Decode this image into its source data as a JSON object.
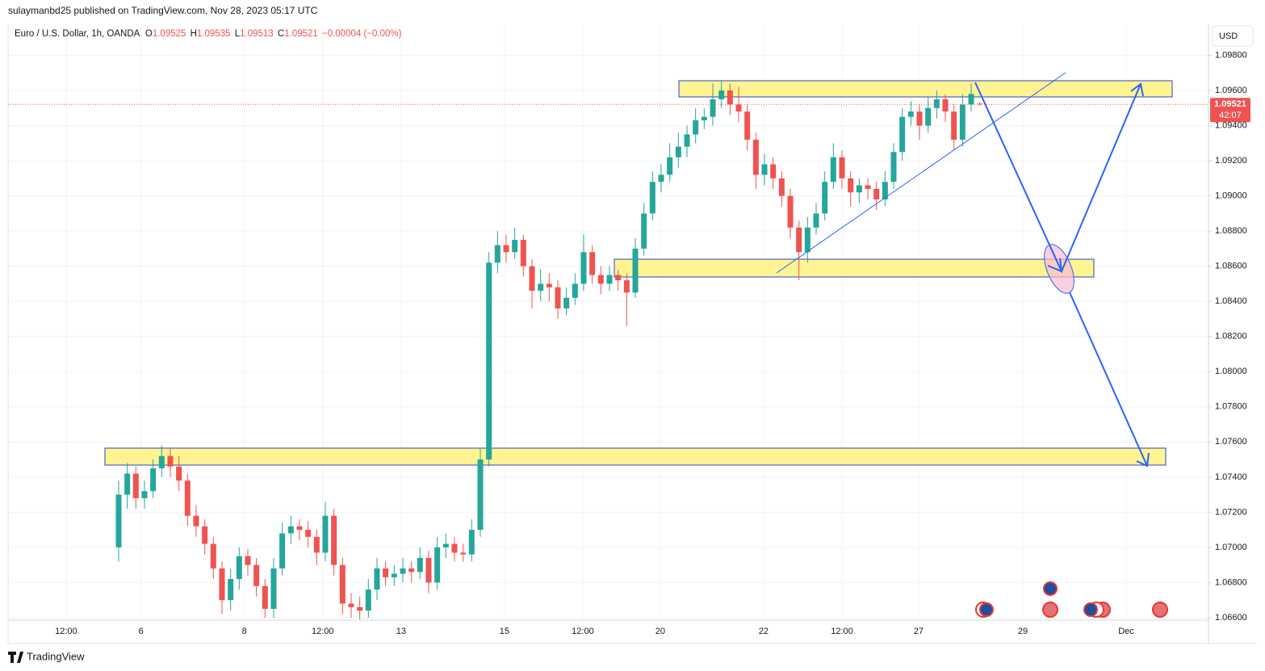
{
  "published": "sulaymanbd25 published on TradingView.com, Nov 28, 2023 05:17 UTC",
  "legend": {
    "symbol": "Euro / U.S. Dollar, 1h, OANDA",
    "fields": [
      {
        "key": "O",
        "value": 1.09525
      },
      {
        "key": "H",
        "value": 1.09535
      },
      {
        "key": "L",
        "value": 1.09513
      },
      {
        "key": "C",
        "value": 1.09521
      }
    ],
    "change": "−0.00004 (−0.00%)"
  },
  "currency": "USD",
  "brand": "TradingView",
  "chart_data": {
    "type": "candlestick",
    "up_color": "#26a69a",
    "down_color": "#ef5350",
    "grid": true,
    "last_price": 1.09521,
    "countdown": "42:07",
    "xlim": [
      -12.84,
      126.56
    ],
    "xticks": [
      {
        "value": -6.1,
        "label": "12:00"
      },
      {
        "value": 2.6,
        "label": "6"
      },
      {
        "value": 14.6,
        "label": "8"
      },
      {
        "value": 23.7,
        "label": "12:00"
      },
      {
        "value": 32.8,
        "label": "13"
      },
      {
        "value": 44.8,
        "label": "15"
      },
      {
        "value": 53.9,
        "label": "12:00"
      },
      {
        "value": 62.9,
        "label": "20"
      },
      {
        "value": 74.9,
        "label": "22"
      },
      {
        "value": 84.0,
        "label": "12:00"
      },
      {
        "value": 92.9,
        "label": "27"
      },
      {
        "value": 105.0,
        "label": "29"
      },
      {
        "value": 117.0,
        "label": "Dec"
      }
    ],
    "ylim": [
      1.06586,
      1.09977
    ],
    "yticks": [
      {
        "value": 1.066,
        "label": "1.06600"
      },
      {
        "value": 1.068,
        "label": "1.06800"
      },
      {
        "value": 1.07,
        "label": "1.07000"
      },
      {
        "value": 1.072,
        "label": "1.07200"
      },
      {
        "value": 1.074,
        "label": "1.07400"
      },
      {
        "value": 1.076,
        "label": "1.07600"
      },
      {
        "value": 1.078,
        "label": "1.07800"
      },
      {
        "value": 1.08,
        "label": "1.08000"
      },
      {
        "value": 1.082,
        "label": "1.08200"
      },
      {
        "value": 1.084,
        "label": "1.08400"
      },
      {
        "value": 1.086,
        "label": "1.08600"
      },
      {
        "value": 1.088,
        "label": "1.08800"
      },
      {
        "value": 1.09,
        "label": "1.09000"
      },
      {
        "value": 1.092,
        "label": "1.09200"
      },
      {
        "value": 1.094,
        "label": "1.09400"
      },
      {
        "value": 1.096,
        "label": "1.09600"
      },
      {
        "value": 1.098,
        "label": "1.09800"
      }
    ],
    "ohlc": [
      [
        1.07,
        1.0738,
        1.0692,
        1.073
      ],
      [
        1.073,
        1.0748,
        1.0722,
        1.0742
      ],
      [
        1.0742,
        1.0746,
        1.0722,
        1.0728
      ],
      [
        1.0728,
        1.0738,
        1.0722,
        1.0732
      ],
      [
        1.0732,
        1.075,
        1.0728,
        1.0745
      ],
      [
        1.0745,
        1.0758,
        1.074,
        1.0752
      ],
      [
        1.0752,
        1.0757,
        1.074,
        1.0746
      ],
      [
        1.0746,
        1.0752,
        1.0732,
        1.0738
      ],
      [
        1.0738,
        1.0742,
        1.0712,
        1.0718
      ],
      [
        1.0718,
        1.0724,
        1.0706,
        1.0712
      ],
      [
        1.0712,
        1.0716,
        1.0696,
        1.0702
      ],
      [
        1.0702,
        1.0706,
        1.0682,
        1.0688
      ],
      [
        1.0688,
        1.0692,
        1.0662,
        1.067
      ],
      [
        1.067,
        1.0688,
        1.0664,
        1.0682
      ],
      [
        1.0682,
        1.07,
        1.0676,
        1.0695
      ],
      [
        1.0695,
        1.0699,
        1.0684,
        1.069
      ],
      [
        1.069,
        1.0694,
        1.0672,
        1.0678
      ],
      [
        1.0678,
        1.0682,
        1.066,
        1.0665
      ],
      [
        1.0665,
        1.0694,
        1.066,
        1.0688
      ],
      [
        1.0688,
        1.0714,
        1.0684,
        1.0708
      ],
      [
        1.0708,
        1.0718,
        1.0702,
        1.0712
      ],
      [
        1.0712,
        1.0716,
        1.0704,
        1.071
      ],
      [
        1.071,
        1.0715,
        1.07,
        1.0706
      ],
      [
        1.0706,
        1.071,
        1.069,
        1.0697
      ],
      [
        1.0697,
        1.0726,
        1.0692,
        1.0718
      ],
      [
        1.0718,
        1.0722,
        1.0684,
        1.069
      ],
      [
        1.069,
        1.0694,
        1.0662,
        1.0668
      ],
      [
        1.0668,
        1.0674,
        1.066,
        1.0666
      ],
      [
        1.0666,
        1.0672,
        1.0659,
        1.0664
      ],
      [
        1.0664,
        1.0682,
        1.066,
        1.0676
      ],
      [
        1.0676,
        1.0694,
        1.067,
        1.0688
      ],
      [
        1.0688,
        1.0692,
        1.0678,
        1.0683
      ],
      [
        1.0683,
        1.069,
        1.0678,
        1.0685
      ],
      [
        1.0685,
        1.0694,
        1.068,
        1.0688
      ],
      [
        1.0688,
        1.0692,
        1.068,
        1.0686
      ],
      [
        1.0686,
        1.07,
        1.0682,
        1.0694
      ],
      [
        1.0694,
        1.0698,
        1.0674,
        1.068
      ],
      [
        1.068,
        1.0706,
        1.0676,
        1.07
      ],
      [
        1.07,
        1.0708,
        1.0694,
        1.0702
      ],
      [
        1.0702,
        1.0706,
        1.0692,
        1.0697
      ],
      [
        1.0697,
        1.0702,
        1.0692,
        1.0696
      ],
      [
        1.0696,
        1.0716,
        1.0692,
        1.071
      ],
      [
        1.071,
        1.0756,
        1.0706,
        1.075
      ],
      [
        1.075,
        1.0868,
        1.0746,
        1.0862
      ],
      [
        1.0862,
        1.088,
        1.0856,
        1.0872
      ],
      [
        1.0872,
        1.0878,
        1.0862,
        1.0868
      ],
      [
        1.0868,
        1.0882,
        1.0864,
        1.0875
      ],
      [
        1.0875,
        1.0878,
        1.0854,
        1.086
      ],
      [
        1.086,
        1.0864,
        1.0836,
        1.0846
      ],
      [
        1.0846,
        1.0858,
        1.084,
        1.085
      ],
      [
        1.085,
        1.0856,
        1.084,
        1.0848
      ],
      [
        1.0848,
        1.0852,
        1.083,
        1.0836
      ],
      [
        1.0836,
        1.0848,
        1.0832,
        1.0842
      ],
      [
        1.0842,
        1.0856,
        1.0838,
        1.085
      ],
      [
        1.085,
        1.0878,
        1.0846,
        1.0868
      ],
      [
        1.0868,
        1.0872,
        1.085,
        1.0855
      ],
      [
        1.0855,
        1.086,
        1.0844,
        1.085
      ],
      [
        1.085,
        1.086,
        1.0846,
        1.0855
      ],
      [
        1.0855,
        1.0858,
        1.0846,
        1.0852
      ],
      [
        1.0852,
        1.0856,
        1.0826,
        1.0845
      ],
      [
        1.0845,
        1.0876,
        1.0842,
        1.087
      ],
      [
        1.087,
        1.0896,
        1.0866,
        1.089
      ],
      [
        1.089,
        1.0914,
        1.0886,
        1.0908
      ],
      [
        1.0908,
        1.0918,
        1.0902,
        1.0912
      ],
      [
        1.0912,
        1.093,
        1.0908,
        1.0922
      ],
      [
        1.0922,
        1.0936,
        1.0916,
        1.0928
      ],
      [
        1.0928,
        1.094,
        1.0922,
        1.0935
      ],
      [
        1.0935,
        1.095,
        1.093,
        1.0943
      ],
      [
        1.0943,
        1.095,
        1.0938,
        1.0945
      ],
      [
        1.0945,
        1.0964,
        1.094,
        1.0955
      ],
      [
        1.0955,
        1.0966,
        1.095,
        1.096
      ],
      [
        1.096,
        1.0964,
        1.0946,
        1.0952
      ],
      [
        1.0952,
        1.0962,
        1.0942,
        1.0948
      ],
      [
        1.0948,
        1.0952,
        1.0926,
        1.0932
      ],
      [
        1.0932,
        1.0936,
        1.0904,
        1.0912
      ],
      [
        1.0912,
        1.0924,
        1.0906,
        1.0918
      ],
      [
        1.0918,
        1.0922,
        1.0904,
        1.091
      ],
      [
        1.091,
        1.0914,
        1.0894,
        1.09
      ],
      [
        1.09,
        1.0904,
        1.0876,
        1.0882
      ],
      [
        1.0882,
        1.0886,
        1.0852,
        1.0868
      ],
      [
        1.0868,
        1.0888,
        1.0862,
        1.0882
      ],
      [
        1.0882,
        1.0896,
        1.0878,
        1.089
      ],
      [
        1.089,
        1.0914,
        1.0886,
        1.0908
      ],
      [
        1.0908,
        1.093,
        1.0904,
        1.0922
      ],
      [
        1.0922,
        1.0926,
        1.0904,
        1.091
      ],
      [
        1.091,
        1.0914,
        1.0894,
        1.0902
      ],
      [
        1.0902,
        1.091,
        1.0896,
        1.0906
      ],
      [
        1.0906,
        1.091,
        1.0898,
        1.0904
      ],
      [
        1.0904,
        1.0908,
        1.0892,
        1.0898
      ],
      [
        1.0898,
        1.0914,
        1.0894,
        1.0908
      ],
      [
        1.0908,
        1.093,
        1.0904,
        1.0925
      ],
      [
        1.0925,
        1.095,
        1.092,
        1.0945
      ],
      [
        1.0945,
        1.0954,
        1.094,
        1.0948
      ],
      [
        1.0948,
        1.0952,
        1.0932,
        1.094
      ],
      [
        1.094,
        1.0956,
        1.0936,
        1.095
      ],
      [
        1.095,
        1.096,
        1.0944,
        1.0955
      ],
      [
        1.0955,
        1.0958,
        1.0942,
        1.0948
      ],
      [
        1.0948,
        1.0952,
        1.0926,
        1.0932
      ],
      [
        1.0932,
        1.0958,
        1.0928,
        1.0952
      ],
      [
        1.0952,
        1.0964,
        1.0948,
        1.0958
      ],
      [
        1.09525,
        1.09535,
        1.09513,
        1.09521
      ]
    ]
  }
}
